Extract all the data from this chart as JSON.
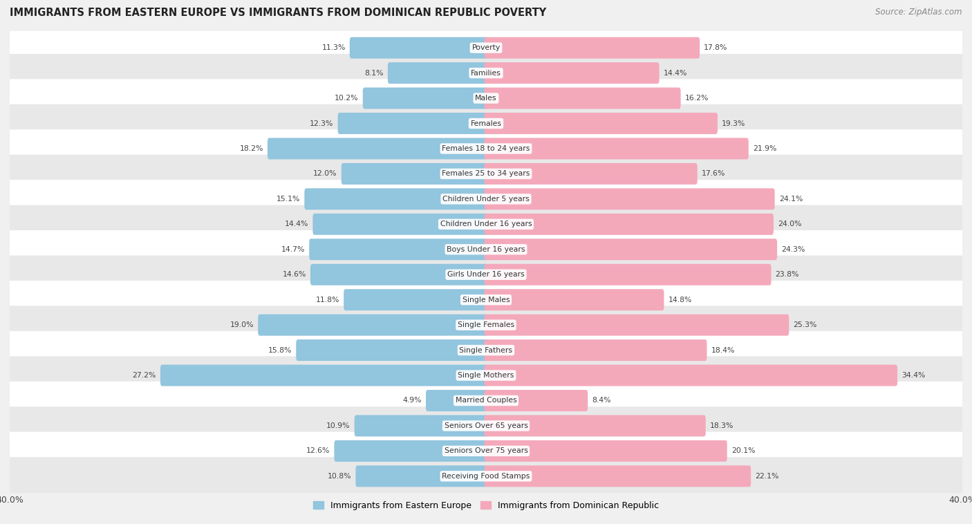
{
  "title": "IMMIGRANTS FROM EASTERN EUROPE VS IMMIGRANTS FROM DOMINICAN REPUBLIC POVERTY",
  "source": "Source: ZipAtlas.com",
  "categories": [
    "Poverty",
    "Families",
    "Males",
    "Females",
    "Females 18 to 24 years",
    "Females 25 to 34 years",
    "Children Under 5 years",
    "Children Under 16 years",
    "Boys Under 16 years",
    "Girls Under 16 years",
    "Single Males",
    "Single Females",
    "Single Fathers",
    "Single Mothers",
    "Married Couples",
    "Seniors Over 65 years",
    "Seniors Over 75 years",
    "Receiving Food Stamps"
  ],
  "eastern_europe": [
    11.3,
    8.1,
    10.2,
    12.3,
    18.2,
    12.0,
    15.1,
    14.4,
    14.7,
    14.6,
    11.8,
    19.0,
    15.8,
    27.2,
    4.9,
    10.9,
    12.6,
    10.8
  ],
  "dominican_republic": [
    17.8,
    14.4,
    16.2,
    19.3,
    21.9,
    17.6,
    24.1,
    24.0,
    24.3,
    23.8,
    14.8,
    25.3,
    18.4,
    34.4,
    8.4,
    18.3,
    20.1,
    22.1
  ],
  "color_eastern": "#92c5de",
  "color_dominican": "#f4a9bb",
  "axis_max": 40.0,
  "background_color": "#f0f0f0",
  "row_color_odd": "#ffffff",
  "row_color_even": "#e8e8e8",
  "legend_label_eastern": "Immigrants from Eastern Europe",
  "legend_label_dominican": "Immigrants from Dominican Republic"
}
